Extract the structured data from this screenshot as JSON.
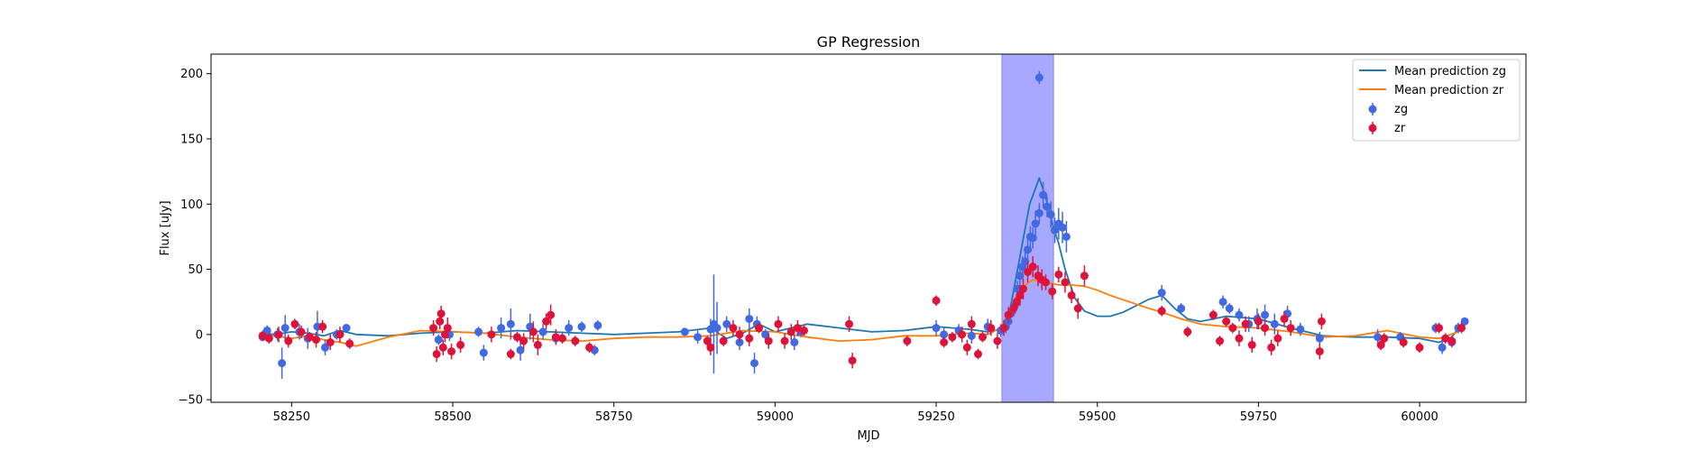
{
  "chart_data": {
    "type": "scatter",
    "title": "GP Regression",
    "xlabel": "MJD",
    "ylabel": "Flux [uJy]",
    "xlim": [
      58125,
      60165
    ],
    "ylim": [
      -52,
      215
    ],
    "xticks": [
      58250,
      58500,
      58750,
      59000,
      59250,
      59500,
      59750,
      60000
    ],
    "yticks": [
      -50,
      0,
      50,
      100,
      150,
      200
    ],
    "grid": false,
    "legend_position": "top-right",
    "shaded_band": {
      "x_start": 59352,
      "x_end": 59432,
      "color": "#a8a8ff"
    },
    "series": [
      {
        "name": "Mean prediction zg",
        "kind": "line",
        "color": "#1f77b4",
        "x": [
          58200,
          58225,
          58250,
          58275,
          58300,
          58325,
          58350,
          58400,
          58450,
          58500,
          58550,
          58600,
          58650,
          58700,
          58750,
          58800,
          58850,
          58900,
          58925,
          58950,
          58975,
          59000,
          59050,
          59100,
          59150,
          59200,
          59250,
          59300,
          59330,
          59350,
          59365,
          59380,
          59395,
          59410,
          59420,
          59430,
          59440,
          59450,
          59465,
          59480,
          59500,
          59520,
          59540,
          59560,
          59580,
          59600,
          59620,
          59640,
          59660,
          59680,
          59700,
          59750,
          59800,
          59850,
          59900,
          59950,
          60000,
          60030,
          60050,
          60065
        ],
        "y": [
          1,
          0,
          2,
          1,
          -1,
          3,
          0,
          -1,
          1,
          2,
          1,
          3,
          2,
          1,
          0,
          1,
          2,
          5,
          -3,
          1,
          8,
          2,
          8,
          5,
          2,
          3,
          6,
          4,
          2,
          4,
          20,
          60,
          100,
          120,
          105,
          85,
          70,
          50,
          28,
          18,
          14,
          14,
          17,
          22,
          27,
          30,
          20,
          12,
          10,
          12,
          14,
          12,
          5,
          -1,
          -2,
          -2,
          -3,
          -6,
          -2,
          8
        ]
      },
      {
        "name": "Mean prediction zr",
        "kind": "line",
        "color": "#ff7f0e",
        "x": [
          58200,
          58225,
          58250,
          58275,
          58300,
          58325,
          58350,
          58400,
          58450,
          58500,
          58550,
          58600,
          58650,
          58700,
          58750,
          58800,
          58850,
          58900,
          58950,
          59000,
          59050,
          59100,
          59150,
          59200,
          59250,
          59300,
          59330,
          59350,
          59365,
          59380,
          59400,
          59420,
          59440,
          59460,
          59480,
          59500,
          59520,
          59550,
          59580,
          59600,
          59630,
          59660,
          59700,
          59750,
          59800,
          59850,
          59900,
          59950,
          60000,
          60030,
          60060
        ],
        "y": [
          0,
          -1,
          -3,
          -1,
          -4,
          -6,
          -9,
          -2,
          3,
          2,
          1,
          -2,
          -4,
          -5,
          -3,
          -2,
          -2,
          -1,
          3,
          2,
          -2,
          -5,
          -4,
          -1,
          -1,
          1,
          0,
          5,
          20,
          35,
          42,
          40,
          38,
          38,
          37,
          34,
          30,
          25,
          20,
          17,
          12,
          8,
          6,
          5,
          2,
          -2,
          -1,
          3,
          -2,
          -3,
          2
        ]
      },
      {
        "name": "zg",
        "kind": "errorbar",
        "color": "#4169e1",
        "x": [
          58205,
          58212,
          58228,
          58235,
          58240,
          58262,
          58275,
          58290,
          58302,
          58320,
          58335,
          58478,
          58495,
          58540,
          58548,
          58575,
          58590,
          58605,
          58620,
          58640,
          58660,
          58680,
          58700,
          58720,
          58725,
          58860,
          58880,
          58900,
          58905,
          58910,
          58925,
          58945,
          58960,
          58968,
          58972,
          58985,
          59030,
          59040,
          59250,
          59262,
          59285,
          59305,
          59330,
          59350,
          59358,
          59362,
          59368,
          59372,
          59376,
          59380,
          59384,
          59388,
          59392,
          59396,
          59400,
          59404,
          59410,
          59416,
          59422,
          59428,
          59434,
          59440,
          59446,
          59452,
          59600,
          59630,
          59695,
          59705,
          59720,
          59735,
          59748,
          59760,
          59775,
          59795,
          59815,
          59845,
          59935,
          59970,
          60025,
          60035,
          60050,
          60060,
          60070
        ],
        "y": [
          -2,
          3,
          0,
          -22,
          5,
          2,
          -3,
          6,
          -10,
          0,
          5,
          -4,
          0,
          2,
          -14,
          5,
          8,
          -12,
          6,
          2,
          -3,
          5,
          6,
          -12,
          7,
          2,
          -2,
          4,
          8,
          5,
          8,
          -6,
          12,
          -22,
          8,
          0,
          -6,
          2,
          5,
          0,
          3,
          -1,
          6,
          3,
          6,
          10,
          18,
          22,
          35,
          45,
          52,
          56,
          65,
          75,
          74,
          85,
          93,
          107,
          98,
          92,
          80,
          85,
          82,
          75,
          32,
          20,
          25,
          20,
          15,
          8,
          12,
          15,
          8,
          16,
          4,
          -3,
          -2,
          -2,
          5,
          -10,
          -6,
          5,
          10
        ],
        "err": [
          2,
          4,
          5,
          12,
          10,
          6,
          8,
          12,
          6,
          4,
          3,
          4,
          5,
          4,
          6,
          8,
          12,
          8,
          10,
          6,
          4,
          6,
          4,
          4,
          4,
          3,
          5,
          8,
          38,
          20,
          6,
          6,
          8,
          8,
          6,
          4,
          6,
          4,
          6,
          5,
          5,
          6,
          6,
          5,
          5,
          5,
          5,
          6,
          6,
          8,
          8,
          8,
          8,
          8,
          8,
          10,
          8,
          10,
          8,
          10,
          10,
          12,
          12,
          12,
          6,
          4,
          5,
          4,
          5,
          6,
          8,
          8,
          8,
          6,
          5,
          5,
          6,
          4,
          4,
          5,
          4,
          4,
          3
        ],
        "outlier": {
          "x": 59410,
          "y": 197,
          "err": 5
        }
      },
      {
        "name": "zr",
        "kind": "errorbar",
        "color": "#dc143c",
        "x": [
          58205,
          58215,
          58230,
          58245,
          58255,
          58265,
          58278,
          58288,
          58298,
          58310,
          58325,
          58340,
          58470,
          58475,
          58480,
          58482,
          58485,
          58488,
          58492,
          58498,
          58512,
          58560,
          58590,
          58600,
          58610,
          58625,
          58632,
          58645,
          58652,
          58660,
          58670,
          58690,
          58712,
          58895,
          58900,
          58920,
          58935,
          58945,
          58960,
          58975,
          58990,
          59005,
          59015,
          59025,
          59035,
          59045,
          59115,
          59120,
          59205,
          59250,
          59262,
          59275,
          59290,
          59298,
          59305,
          59315,
          59322,
          59335,
          59345,
          59355,
          59362,
          59370,
          59375,
          59380,
          59385,
          59392,
          59400,
          59408,
          59414,
          59420,
          59430,
          59440,
          59450,
          59460,
          59470,
          59480,
          59600,
          59640,
          59680,
          59690,
          59700,
          59710,
          59720,
          59730,
          59740,
          59750,
          59760,
          59770,
          59780,
          59790,
          59800,
          59845,
          59848,
          59940,
          59945,
          59975,
          60000,
          60030,
          60040,
          60050,
          60065
        ],
        "y": [
          -1,
          -3,
          0,
          -5,
          8,
          2,
          -2,
          -4,
          6,
          -6,
          0,
          -7,
          5,
          -15,
          10,
          16,
          -10,
          0,
          5,
          -13,
          -8,
          0,
          -15,
          -2,
          -5,
          2,
          -8,
          10,
          15,
          -2,
          -3,
          -5,
          -10,
          -5,
          -10,
          -5,
          5,
          0,
          -3,
          5,
          -5,
          8,
          -5,
          2,
          5,
          3,
          8,
          -20,
          -5,
          26,
          -6,
          -2,
          0,
          -10,
          8,
          -15,
          -2,
          5,
          -5,
          5,
          15,
          20,
          25,
          30,
          35,
          48,
          52,
          45,
          42,
          40,
          33,
          46,
          40,
          30,
          20,
          45,
          18,
          2,
          15,
          -5,
          10,
          5,
          -3,
          8,
          -8,
          10,
          5,
          -10,
          -3,
          12,
          5,
          -13,
          10,
          -8,
          -3,
          -6,
          -10,
          5,
          -3,
          -5,
          5
        ],
        "err": [
          4,
          4,
          6,
          5,
          4,
          5,
          4,
          6,
          5,
          6,
          6,
          4,
          6,
          6,
          6,
          6,
          6,
          6,
          8,
          6,
          6,
          6,
          4,
          4,
          6,
          8,
          8,
          6,
          8,
          6,
          4,
          4,
          4,
          4,
          6,
          4,
          6,
          6,
          6,
          4,
          6,
          6,
          6,
          6,
          6,
          4,
          6,
          6,
          4,
          4,
          4,
          4,
          6,
          6,
          6,
          4,
          4,
          6,
          6,
          6,
          6,
          6,
          6,
          8,
          8,
          8,
          8,
          8,
          8,
          6,
          6,
          6,
          8,
          6,
          8,
          8,
          4,
          4,
          4,
          4,
          4,
          4,
          6,
          6,
          6,
          6,
          6,
          6,
          6,
          6,
          6,
          6,
          6,
          4,
          4,
          4,
          4,
          4,
          4,
          4,
          4
        ]
      }
    ]
  }
}
